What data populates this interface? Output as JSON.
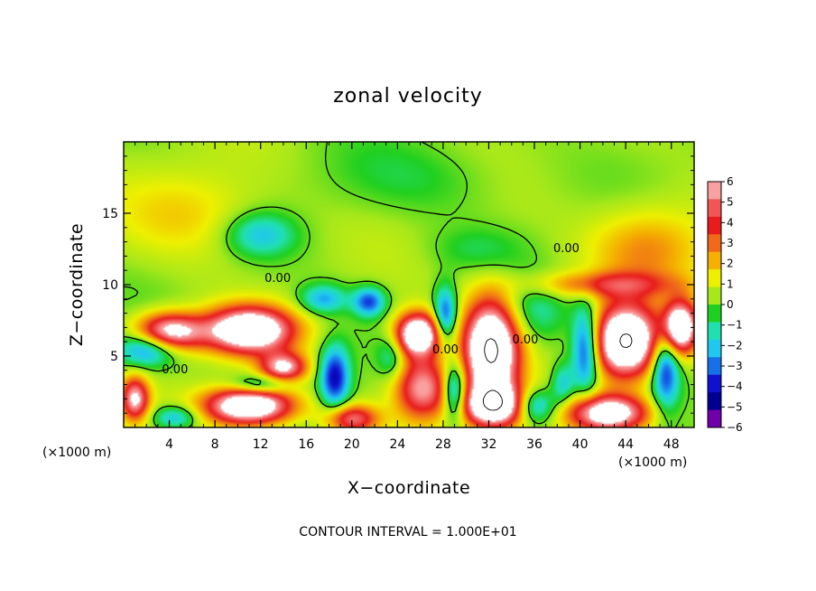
{
  "chart_data": {
    "type": "heatmap",
    "title": "zonal velocity",
    "xlabel": "X−coordinate",
    "ylabel": "Z−coordinate",
    "x_unit": "(×1000 m)",
    "y_unit": "(×1000 m)",
    "footer": "CONTOUR INTERVAL = 1.000E+01",
    "xlim": [
      0,
      50
    ],
    "ylim": [
      0,
      20
    ],
    "x_ticks": [
      4,
      8,
      12,
      16,
      20,
      24,
      28,
      32,
      36,
      40,
      44,
      48
    ],
    "x_tick_labels": [
      "4",
      "8",
      "12",
      "16",
      "20",
      "24",
      "28",
      "32",
      "36",
      "40",
      "44",
      "48"
    ],
    "y_ticks": [
      5,
      10,
      15
    ],
    "y_tick_labels": [
      "5",
      "10",
      "15"
    ],
    "colorbar": {
      "range": [
        -6,
        6
      ],
      "ticks": [
        6,
        5,
        4,
        3,
        2,
        1,
        0,
        -1,
        -2,
        -3,
        -4,
        -5,
        -6
      ],
      "tick_labels": [
        "6",
        "5",
        "4",
        "3",
        "2",
        "1",
        "0",
        "−1",
        "−2",
        "−3",
        "−4",
        "−5",
        "−6"
      ],
      "colors": [
        "#f9a0a0",
        "#f25555",
        "#e81c1c",
        "#f06a1a",
        "#f5b000",
        "#eef000",
        "#a8e81a",
        "#20d020",
        "#20e0b0",
        "#20c8f0",
        "#1870e8",
        "#1010d0",
        "#000090",
        "#7000a8"
      ]
    },
    "contour_labels": [
      {
        "text": "0.00",
        "x": 13.5,
        "y": 10.5
      },
      {
        "text": "0.00",
        "x": 4.5,
        "y": 4.1
      },
      {
        "text": "0.00",
        "x": 28.2,
        "y": 5.5
      },
      {
        "text": "0.00",
        "x": 35.2,
        "y": 6.2
      },
      {
        "text": "0.00",
        "x": 38.8,
        "y": 12.6
      }
    ],
    "features": [
      {
        "sign": 1,
        "x": 11,
        "y": 6.8,
        "amp": 9,
        "rx": 3.8,
        "ry": 1.6
      },
      {
        "sign": 1,
        "x": 4,
        "y": 6.7,
        "amp": 7,
        "rx": 3.0,
        "ry": 1.3
      },
      {
        "sign": 1,
        "x": 14,
        "y": 4.2,
        "amp": 6,
        "rx": 2.0,
        "ry": 1.0
      },
      {
        "sign": 1,
        "x": 11,
        "y": 1.5,
        "amp": 9,
        "rx": 3.8,
        "ry": 1.3
      },
      {
        "sign": 1,
        "x": 20,
        "y": 0.6,
        "amp": 5,
        "rx": 2.3,
        "ry": 1.0
      },
      {
        "sign": 1,
        "x": 26.2,
        "y": 2.8,
        "amp": 6,
        "rx": 2.4,
        "ry": 2.2
      },
      {
        "sign": 1,
        "x": 25.8,
        "y": 6.5,
        "amp": 9,
        "rx": 2.0,
        "ry": 1.5
      },
      {
        "sign": 1,
        "x": 32.2,
        "y": 5.5,
        "amp": 10,
        "rx": 2.4,
        "ry": 3.4
      },
      {
        "sign": 1,
        "x": 32.5,
        "y": 1.5,
        "amp": 8,
        "rx": 2.8,
        "ry": 1.5
      },
      {
        "sign": 1,
        "x": 44,
        "y": 6.0,
        "amp": 10,
        "rx": 2.8,
        "ry": 2.5
      },
      {
        "sign": 1,
        "x": 48.7,
        "y": 7.0,
        "amp": 9,
        "rx": 1.6,
        "ry": 1.8
      },
      {
        "sign": 1,
        "x": 42.5,
        "y": 1.0,
        "amp": 8,
        "rx": 3.5,
        "ry": 1.3
      },
      {
        "sign": 1,
        "x": 42.0,
        "y": 10.0,
        "amp": 3,
        "rx": 6.5,
        "ry": 0.9
      },
      {
        "sign": 1,
        "x": 1.0,
        "y": 2.0,
        "amp": 6,
        "rx": 1.2,
        "ry": 1.5
      },
      {
        "sign": 1,
        "x": 46,
        "y": 12.5,
        "amp": 2.5,
        "rx": 5.0,
        "ry": 3.0
      },
      {
        "sign": 1,
        "x": 6,
        "y": 15,
        "amp": 1.5,
        "rx": 6.0,
        "ry": 3.0
      },
      {
        "sign": -1,
        "x": 2,
        "y": 5.5,
        "amp": 4,
        "rx": 2.5,
        "ry": 1.2
      },
      {
        "sign": -1,
        "x": 18.5,
        "y": 3.5,
        "amp": 5,
        "rx": 1.3,
        "ry": 2.2
      },
      {
        "sign": -1,
        "x": 17.5,
        "y": 9.0,
        "amp": 3,
        "rx": 2.0,
        "ry": 1.0
      },
      {
        "sign": -1,
        "x": 21.5,
        "y": 8.8,
        "amp": 4,
        "rx": 1.4,
        "ry": 1.0
      },
      {
        "sign": -1,
        "x": 28.2,
        "y": 7.8,
        "amp": 4.5,
        "rx": 1.0,
        "ry": 2.0
      },
      {
        "sign": -1,
        "x": 29.0,
        "y": 2.5,
        "amp": 5,
        "rx": 1.0,
        "ry": 2.0
      },
      {
        "sign": -1,
        "x": 36,
        "y": 1.5,
        "amp": 4,
        "rx": 1.8,
        "ry": 1.2
      },
      {
        "sign": -1,
        "x": 40.5,
        "y": 5.5,
        "amp": 5,
        "rx": 1.2,
        "ry": 3.0
      },
      {
        "sign": -1,
        "x": 47.5,
        "y": 4.5,
        "amp": 5,
        "rx": 1.2,
        "ry": 3.0
      },
      {
        "sign": -1,
        "x": 38.5,
        "y": 3.0,
        "amp": 2.5,
        "rx": 1.0,
        "ry": 1.5
      },
      {
        "sign": -1,
        "x": 12,
        "y": 3.0,
        "amp": 3,
        "rx": 2.5,
        "ry": 0.7
      },
      {
        "sign": -1,
        "x": 4.5,
        "y": 0.7,
        "amp": 3,
        "rx": 2.0,
        "ry": 0.8
      },
      {
        "sign": -1,
        "x": 23.5,
        "y": 5.0,
        "amp": 2.0,
        "rx": 1.2,
        "ry": 1.5
      },
      {
        "sign": -1,
        "x": 12,
        "y": 13.5,
        "amp": 2.5,
        "rx": 3.0,
        "ry": 1.5
      },
      {
        "sign": -1,
        "x": 26,
        "y": 17.5,
        "amp": 0.8,
        "rx": 8.0,
        "ry": 2.5
      },
      {
        "sign": -1,
        "x": 36.0,
        "y": 8.0,
        "amp": 1.6,
        "rx": 2.8,
        "ry": 2.0
      },
      {
        "sign": -1,
        "x": 31,
        "y": 12.5,
        "amp": 0.9,
        "rx": 4.0,
        "ry": 1.5
      }
    ]
  }
}
